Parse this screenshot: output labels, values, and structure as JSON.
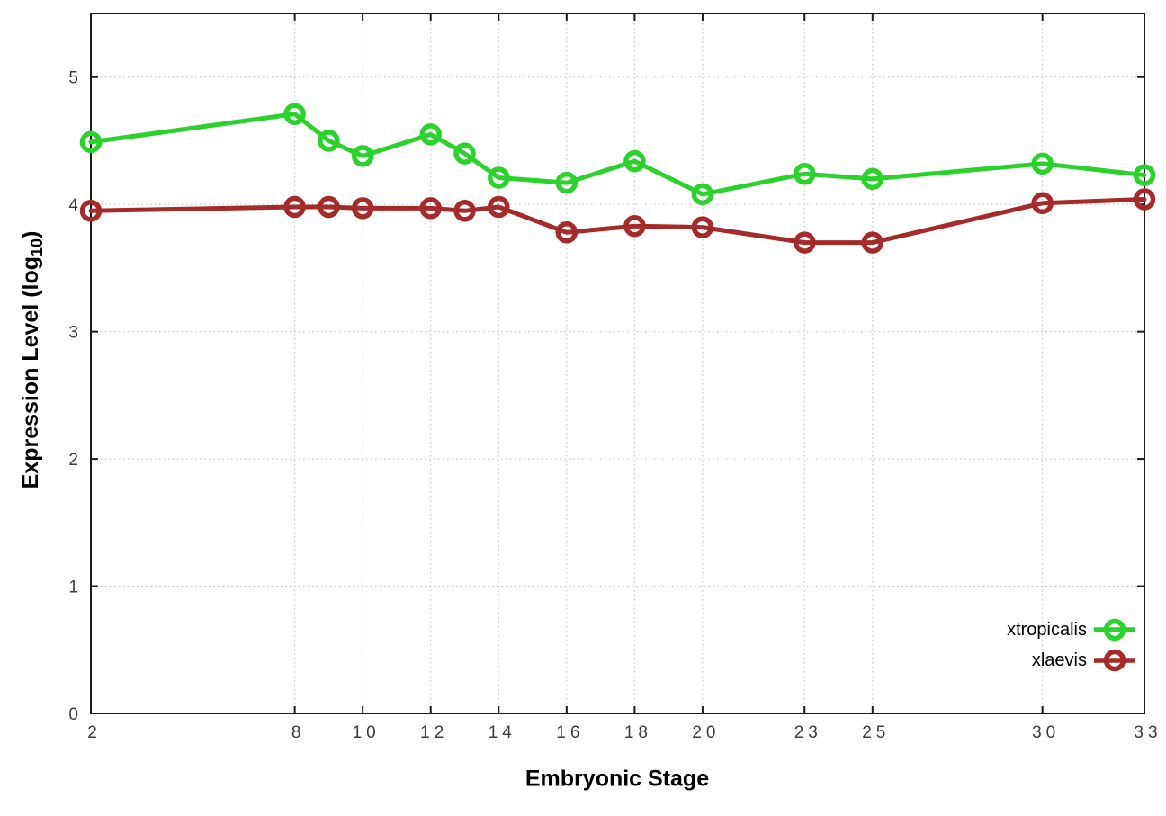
{
  "chart_data": {
    "type": "line",
    "title": "",
    "xlabel": "Embryonic Stage",
    "ylabel": "Expression Level (log10)",
    "ylabel_parts": {
      "main": "Expression Level (log",
      "sub": "10",
      "close": ")"
    },
    "xlim": [
      2,
      33
    ],
    "ylim": [
      0,
      5.5
    ],
    "xticks": [
      2,
      8,
      10,
      12,
      14,
      16,
      18,
      20,
      23,
      25,
      30,
      33
    ],
    "yticks": [
      0,
      1,
      2,
      3,
      4,
      5
    ],
    "grid": true,
    "grid_style": "dotted",
    "legend_position": "inside-right-bottom",
    "marker": "open-circle",
    "x": [
      2,
      8,
      9,
      10,
      12,
      13,
      14,
      16,
      18,
      20,
      23,
      25,
      30,
      33
    ],
    "series": [
      {
        "name": "xtropicalis",
        "color": "#2bd22b",
        "values": [
          4.49,
          4.71,
          4.5,
          4.38,
          4.55,
          4.4,
          4.21,
          4.17,
          4.34,
          4.08,
          4.24,
          4.2,
          4.32,
          4.23
        ]
      },
      {
        "name": "xlaevis",
        "color": "#a52a2a",
        "values": [
          3.95,
          3.98,
          3.98,
          3.97,
          3.97,
          3.95,
          3.98,
          3.78,
          3.83,
          3.82,
          3.7,
          3.7,
          4.01,
          4.04
        ]
      }
    ],
    "colors": {
      "background": "#ffffff",
      "grid": "#bdbdbd",
      "axis": "#1a1a1a",
      "tick_label": "#3c3c3c"
    }
  }
}
